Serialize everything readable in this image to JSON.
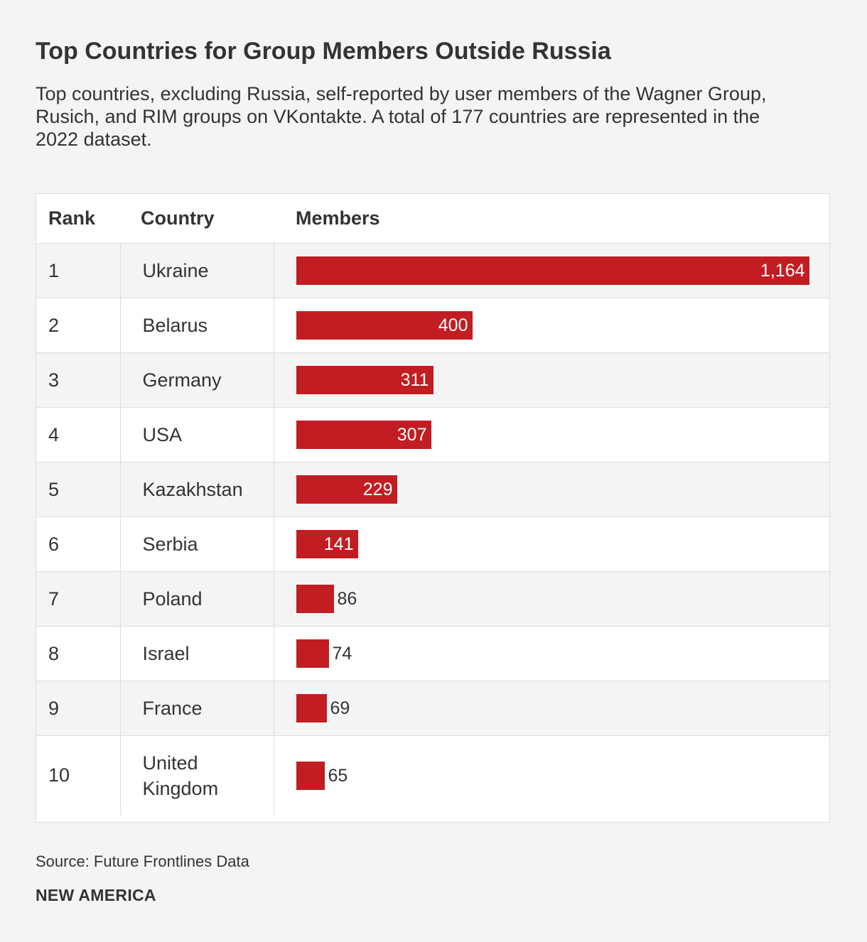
{
  "title": "Top Countries for Group Members Outside Russia",
  "subtitle": "Top countries, excluding Russia, self-reported by user members of the Wagner Group, Rusich, and RIM groups on VKontakte. A total of 177 countries are represented in the 2022 dataset.",
  "source": "Source: Future Frontlines Data",
  "brand": "NEW AMERICA",
  "colors": {
    "bar": "#c21d22",
    "background": "#f4f4f4"
  },
  "chart_data": {
    "type": "table",
    "columns": [
      "Rank",
      "Country",
      "Members"
    ],
    "xlim": [
      0,
      1164
    ],
    "rows": [
      {
        "rank": "1",
        "country": "Ukraine",
        "members": 1164,
        "label": "1,164"
      },
      {
        "rank": "2",
        "country": "Belarus",
        "members": 400,
        "label": "400"
      },
      {
        "rank": "3",
        "country": "Germany",
        "members": 311,
        "label": "311"
      },
      {
        "rank": "4",
        "country": "USA",
        "members": 307,
        "label": "307"
      },
      {
        "rank": "5",
        "country": "Kazakhstan",
        "members": 229,
        "label": "229"
      },
      {
        "rank": "6",
        "country": "Serbia",
        "members": 141,
        "label": "141"
      },
      {
        "rank": "7",
        "country": "Poland",
        "members": 86,
        "label": "86"
      },
      {
        "rank": "8",
        "country": "Israel",
        "members": 74,
        "label": "74"
      },
      {
        "rank": "9",
        "country": "France",
        "members": 69,
        "label": "69"
      },
      {
        "rank": "10",
        "country": "United Kingdom",
        "members": 65,
        "label": "65"
      }
    ]
  }
}
